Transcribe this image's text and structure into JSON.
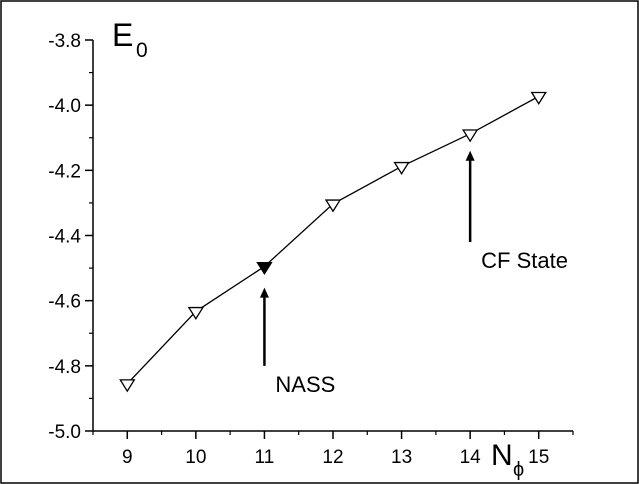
{
  "chart_data": {
    "type": "line",
    "title": "",
    "ylabel": {
      "main": "E",
      "sub": "0"
    },
    "xlabel": {
      "main": "N",
      "sub": "ϕ"
    },
    "xlim": [
      8.5,
      15.5
    ],
    "ylim": [
      -5.0,
      -3.8
    ],
    "x_ticks": [
      9,
      10,
      11,
      12,
      13,
      14,
      15
    ],
    "x_tick_labels": [
      "9",
      "10",
      "11",
      "12",
      "13",
      "14",
      "15"
    ],
    "y_ticks": [
      -5.0,
      -4.8,
      -4.6,
      -4.4,
      -4.2,
      -4.0,
      -3.8
    ],
    "y_tick_labels": [
      "-5.0",
      "-4.8",
      "-4.6",
      "-4.4",
      "-4.2",
      "-4.0",
      "-3.8"
    ],
    "grid": false,
    "series": [
      {
        "marker": "triangle-down",
        "color": "#000000",
        "x": [
          9,
          10,
          11,
          12,
          13,
          14,
          15
        ],
        "y": [
          -4.855,
          -4.633,
          -4.495,
          -4.303,
          -4.188,
          -4.088,
          -3.973
        ],
        "filled": [
          false,
          false,
          true,
          false,
          false,
          false,
          false
        ]
      }
    ],
    "annotations": [
      {
        "text": "NASS",
        "x": 11,
        "arrow_from_y": -4.8,
        "arrow_to_y": -4.56
      },
      {
        "text": "CF State",
        "x": 14,
        "arrow_from_y": -4.42,
        "arrow_to_y": -4.14
      }
    ]
  }
}
